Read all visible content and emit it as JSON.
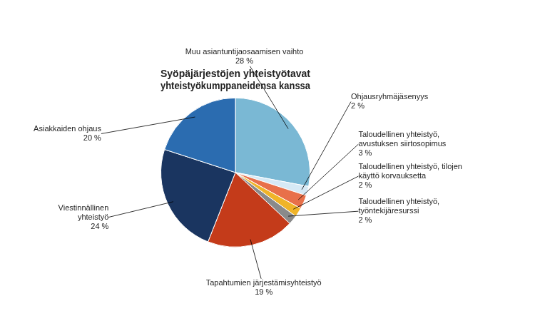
{
  "chart_data": {
    "type": "pie",
    "title": "Syöpäjärjestöjen yhteistyötavat\nyhteistyökumppaneidensa kanssa",
    "categories": [
      "Muu asiantuntijaosaamisen vaihto",
      "Ohjausryhmäjäsenyys",
      "Taloudellinen yhteistyö,\navustuksen siirtosopimus",
      "Taloudellinen yhteistyö, tilojen\nkäyttö korvauksetta",
      "Taloudellinen yhteistyö,\ntyöntekijäresurssi",
      "Tapahtumien järjestämisyhteistyö",
      "Viestinnällinen\nyhteistyö",
      "Asiakkaiden ohjaus"
    ],
    "values": [
      28,
      2,
      3,
      2,
      2,
      19,
      24,
      20
    ],
    "value_labels": [
      "28 %",
      "2 %",
      "3 %",
      "2 %",
      "2 %",
      "19 %",
      "24 %",
      "20 %"
    ],
    "colors": [
      "#7AB8D4",
      "#D6E9F5",
      "#E8704A",
      "#F0B429",
      "#8A8A8A",
      "#C43B1A",
      "#1A3560",
      "#2B6CB0"
    ],
    "data_labels": true
  }
}
